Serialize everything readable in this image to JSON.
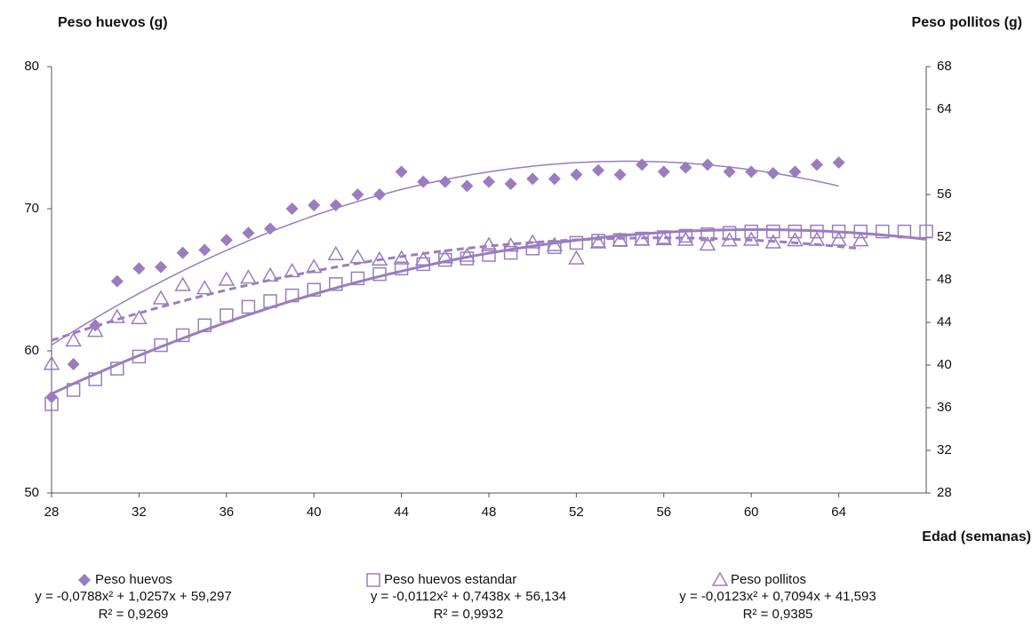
{
  "chart_data": {
    "type": "scatter",
    "ylabel": "Peso huevos (g)",
    "y2label": "Peso pollitos (g)",
    "xlabel": "Edad (semanas)",
    "x": [
      28,
      29,
      30,
      31,
      32,
      33,
      34,
      35,
      36,
      37,
      38,
      39,
      40,
      41,
      42,
      43,
      44,
      45,
      46,
      47,
      48,
      49,
      50,
      51,
      52,
      53,
      54,
      55,
      56,
      57,
      58,
      59,
      60,
      61,
      62,
      63,
      64,
      65,
      66,
      67,
      68
    ],
    "xlim": [
      28,
      68
    ],
    "xticks": [
      28,
      32,
      36,
      40,
      44,
      48,
      52,
      56,
      60,
      64
    ],
    "ylim": [
      50,
      80
    ],
    "yticks": [
      50,
      60,
      70,
      80
    ],
    "y2lim": [
      28,
      68
    ],
    "y2ticks": [
      28,
      32,
      36,
      40,
      44,
      48,
      52,
      56,
      64,
      68
    ],
    "series": [
      {
        "name": "Peso huevos",
        "color": "#9a7dbf",
        "marker": "diamond",
        "axis": "y",
        "trend_style": "solid",
        "trend_width": 1.5,
        "equation": "y = -0,0788x² + 1,0257x + 59,297",
        "r2": "R² = 0,9269",
        "values": [
          56.75,
          59.06,
          61.8,
          64.9,
          65.8,
          65.9,
          66.9,
          67.1,
          67.8,
          68.3,
          68.6,
          70.0,
          70.25,
          70.25,
          71.0,
          71.0,
          72.6,
          71.9,
          71.9,
          71.6,
          71.9,
          71.75,
          72.1,
          72.1,
          72.4,
          72.7,
          72.4,
          73.1,
          72.6,
          72.9,
          73.1,
          72.6,
          72.6,
          72.5,
          72.6,
          73.1,
          73.25,
          null,
          null,
          null,
          null
        ]
      },
      {
        "name": "Peso huevos estandar",
        "color": "#9a7dbf",
        "marker": "square",
        "axis": "y",
        "trend_style": "solid",
        "trend_width": 3,
        "equation": "y = -0,0112x² + 0,7438x + 56,134",
        "r2": "R² = 0,9932",
        "values": [
          56.25,
          57.25,
          58.0,
          58.75,
          59.6,
          60.4,
          61.1,
          61.8,
          62.5,
          63.1,
          63.5,
          63.9,
          64.3,
          64.7,
          65.1,
          65.4,
          65.8,
          66.1,
          66.4,
          66.5,
          66.75,
          66.9,
          67.2,
          67.3,
          67.6,
          67.75,
          67.8,
          67.9,
          68.0,
          68.1,
          68.2,
          68.3,
          68.4,
          68.4,
          68.4,
          68.4,
          68.4,
          68.4,
          68.4,
          68.4,
          68.4
        ]
      },
      {
        "name": "Peso pollitos",
        "color": "#9a7dbf",
        "marker": "triangle",
        "axis": "y2",
        "trend_style": "dashed",
        "trend_width": 3,
        "equation": "y = -0,0123x² + 0,7094x + 41,593",
        "r2": "R² = 0,9385",
        "values": [
          40.1,
          42.3,
          43.2,
          44.5,
          44.4,
          46.25,
          47.5,
          47.2,
          48.0,
          48.2,
          48.4,
          48.8,
          49.2,
          50.4,
          50.1,
          49.9,
          50.0,
          49.9,
          50.1,
          50.25,
          51.25,
          51.2,
          51.5,
          51.25,
          50.0,
          51.5,
          51.7,
          51.75,
          51.8,
          51.75,
          51.3,
          51.7,
          51.75,
          51.5,
          51.7,
          51.75,
          51.75,
          51.7,
          null,
          null,
          null
        ]
      }
    ]
  }
}
